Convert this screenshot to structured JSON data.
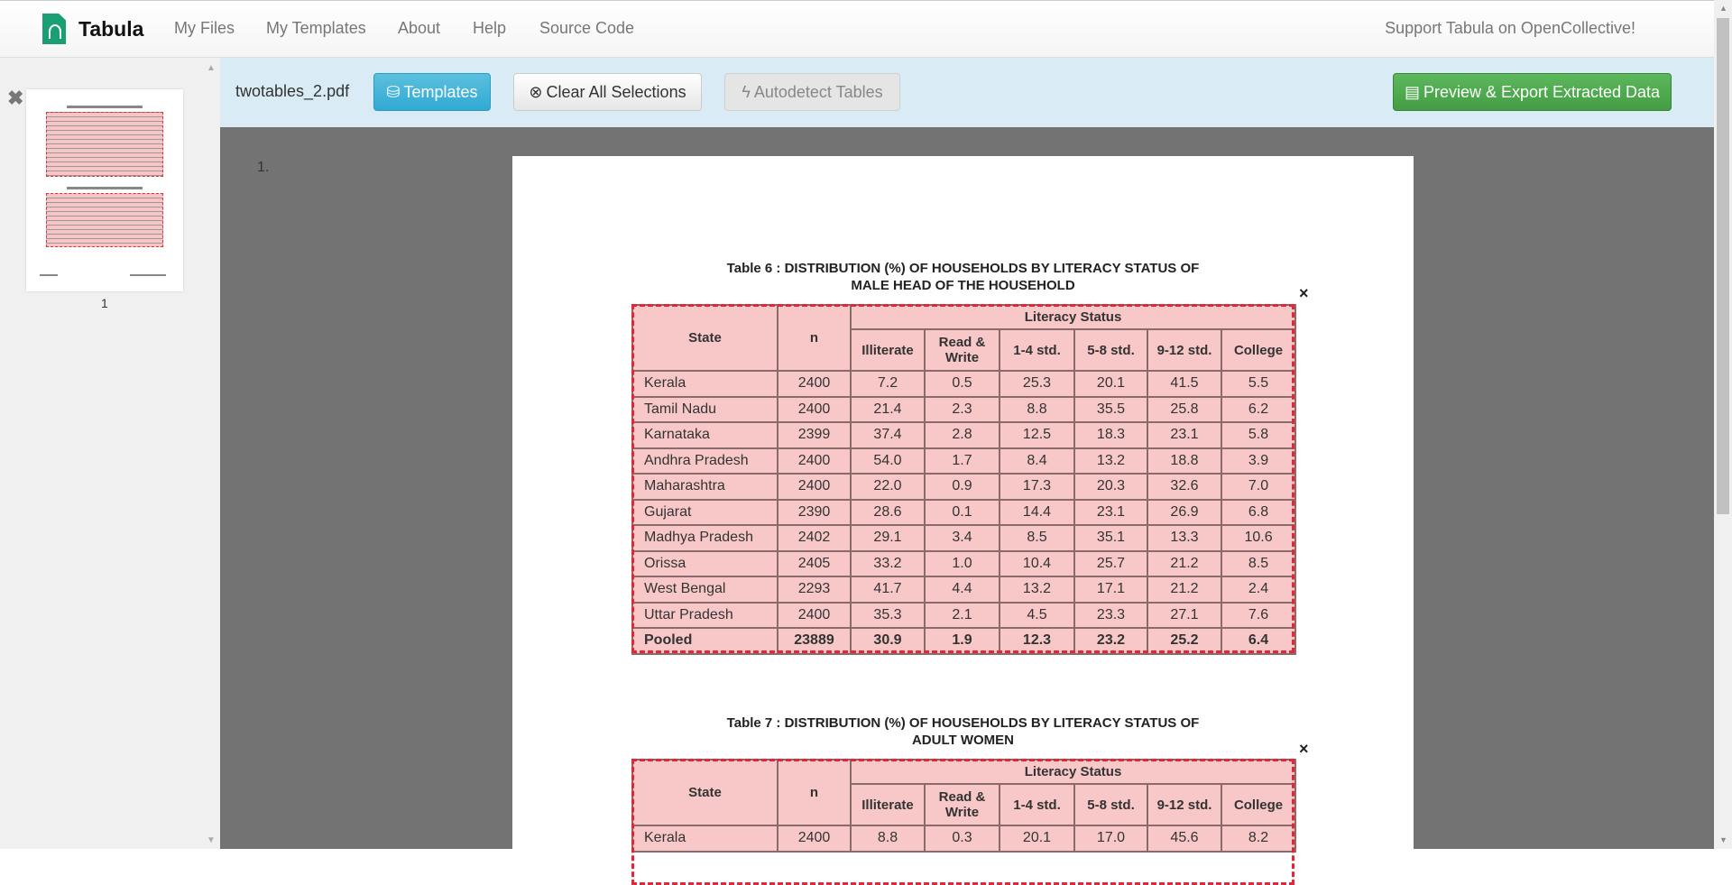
{
  "nav": {
    "brand": "Tabula",
    "links": [
      "My Files",
      "My Templates",
      "About",
      "Help",
      "Source Code"
    ],
    "support": "Support Tabula on OpenCollective!"
  },
  "sidebar": {
    "page_label": "1"
  },
  "toolbar": {
    "filename": "twotables_2.pdf",
    "templates": "Templates",
    "clear": "Clear All Selections",
    "autodetect": "Autodetect Tables",
    "export": "Preview & Export Extracted Data"
  },
  "viewer": {
    "page_number": "1."
  },
  "colors": {
    "selection": "#e0283a",
    "export": "#5cb85c",
    "templates": "#5bc0de"
  },
  "table6": {
    "title1": "Table 6 : DISTRIBUTION (%) OF HOUSEHOLDS BY LITERACY STATUS OF",
    "title2": "MALE HEAD OF THE HOUSEHOLD",
    "headers": {
      "state": "State",
      "n": "n",
      "group": "Literacy Status",
      "cols": [
        "Illiterate",
        "Read & Write",
        "1-4 std.",
        "5-8 std.",
        "9-12 std.",
        "College"
      ]
    },
    "rows": [
      [
        "Kerala",
        "2400",
        "7.2",
        "0.5",
        "25.3",
        "20.1",
        "41.5",
        "5.5"
      ],
      [
        "Tamil Nadu",
        "2400",
        "21.4",
        "2.3",
        "8.8",
        "35.5",
        "25.8",
        "6.2"
      ],
      [
        "Karnataka",
        "2399",
        "37.4",
        "2.8",
        "12.5",
        "18.3",
        "23.1",
        "5.8"
      ],
      [
        "Andhra Pradesh",
        "2400",
        "54.0",
        "1.7",
        "8.4",
        "13.2",
        "18.8",
        "3.9"
      ],
      [
        "Maharashtra",
        "2400",
        "22.0",
        "0.9",
        "17.3",
        "20.3",
        "32.6",
        "7.0"
      ],
      [
        "Gujarat",
        "2390",
        "28.6",
        "0.1",
        "14.4",
        "23.1",
        "26.9",
        "6.8"
      ],
      [
        "Madhya Pradesh",
        "2402",
        "29.1",
        "3.4",
        "8.5",
        "35.1",
        "13.3",
        "10.6"
      ],
      [
        "Orissa",
        "2405",
        "33.2",
        "1.0",
        "10.4",
        "25.7",
        "21.2",
        "8.5"
      ],
      [
        "West Bengal",
        "2293",
        "41.7",
        "4.4",
        "13.2",
        "17.1",
        "21.2",
        "2.4"
      ],
      [
        "Uttar Pradesh",
        "2400",
        "35.3",
        "2.1",
        "4.5",
        "23.3",
        "27.1",
        "7.6"
      ],
      [
        "Pooled",
        "23889",
        "30.9",
        "1.9",
        "12.3",
        "23.2",
        "25.2",
        "6.4"
      ]
    ]
  },
  "table7": {
    "title1": "Table 7 : DISTRIBUTION (%) OF HOUSEHOLDS BY LITERACY STATUS OF",
    "title2": "ADULT WOMEN",
    "headers": {
      "state": "State",
      "n": "n",
      "group": "Literacy Status",
      "cols": [
        "Illiterate",
        "Read & Write",
        "1-4 std.",
        "5-8 std.",
        "9-12 std.",
        "College"
      ]
    },
    "rows": [
      [
        "Kerala",
        "2400",
        "8.8",
        "0.3",
        "20.1",
        "17.0",
        "45.6",
        "8.2"
      ]
    ]
  }
}
